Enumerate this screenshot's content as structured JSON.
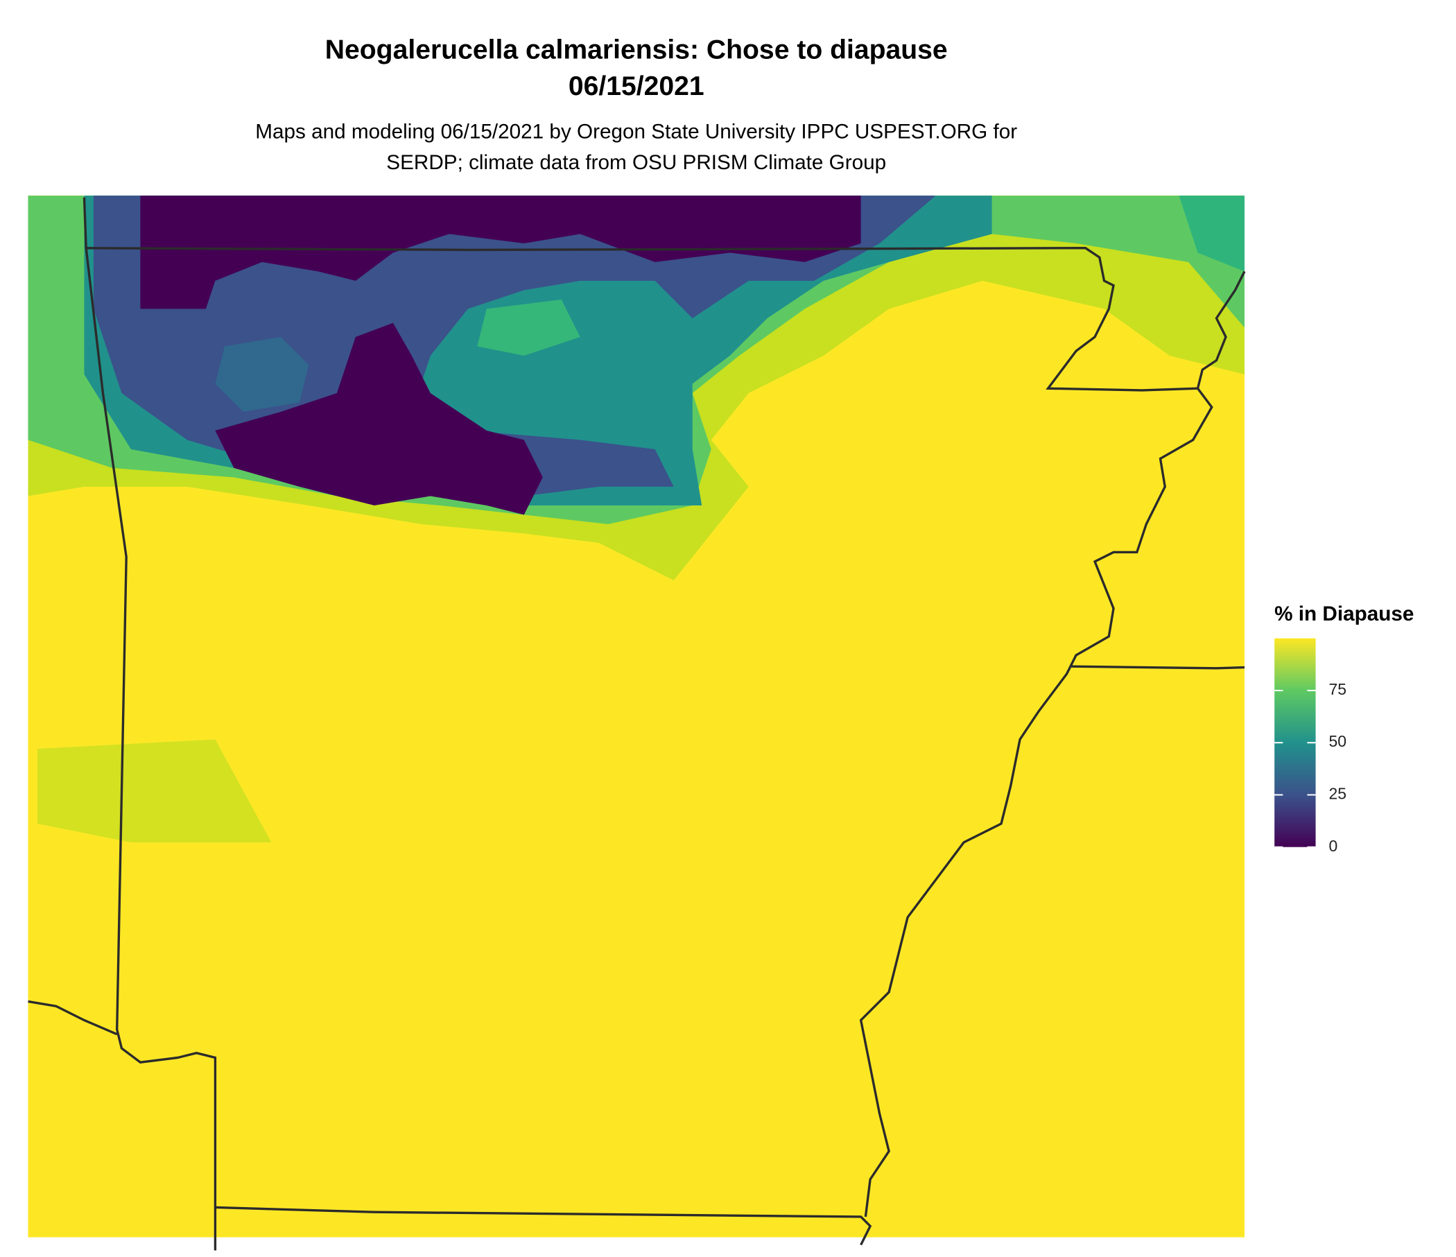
{
  "title": "Neogalerucella calmariensis: Chose to diapause",
  "date": "06/15/2021",
  "subtitle": [
    "Maps and modeling 06/15/2021 by Oregon State University IPPC USPEST.ORG for",
    "SERDP; climate data from OSU PRISM Climate Group"
  ],
  "legend": {
    "title": "% in Diapause",
    "limits": [
      0,
      100
    ],
    "ticks": [
      0,
      25,
      50,
      75
    ],
    "colors": [
      "#440154",
      "#3b528b",
      "#21918c",
      "#5ec962",
      "#fde725"
    ]
  }
}
